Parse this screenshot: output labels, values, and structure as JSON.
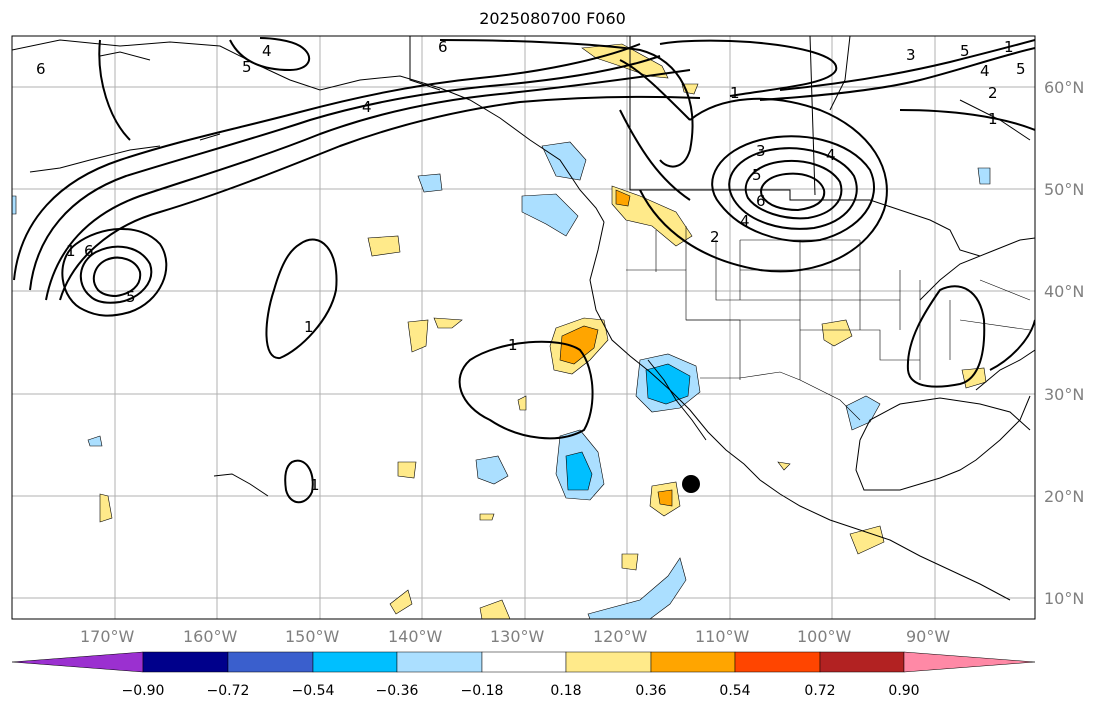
{
  "title": "2025080700 F060",
  "lon_labels": [
    "170°W",
    "160°W",
    "150°W",
    "140°W",
    "130°W",
    "120°W",
    "110°W",
    "100°W",
    "90°W"
  ],
  "lat_labels": [
    "60°N",
    "50°N",
    "40°N",
    "30°N",
    "20°N",
    "10°N"
  ],
  "colorbar": {
    "ticks": [
      "−0.90",
      "−0.72",
      "−0.54",
      "−0.36",
      "−0.18",
      "0.18",
      "0.36",
      "0.54",
      "0.72",
      "0.90"
    ],
    "colors": [
      "#9b30d0",
      "#00008b",
      "#3a5fcd",
      "#00bfff",
      "#abdfff",
      "#ffffff",
      "#ffea8a",
      "#ffa500",
      "#ff4500",
      "#b22222",
      "#ff89a6"
    ]
  },
  "contour_labels": [
    "6",
    "5",
    "4",
    "6",
    "5",
    "4",
    "3",
    "2",
    "1",
    "1",
    "4",
    "6",
    "5",
    "1",
    "1",
    "3",
    "4",
    "5",
    "6",
    "2",
    "1",
    "1",
    "1",
    "4",
    "5"
  ]
}
